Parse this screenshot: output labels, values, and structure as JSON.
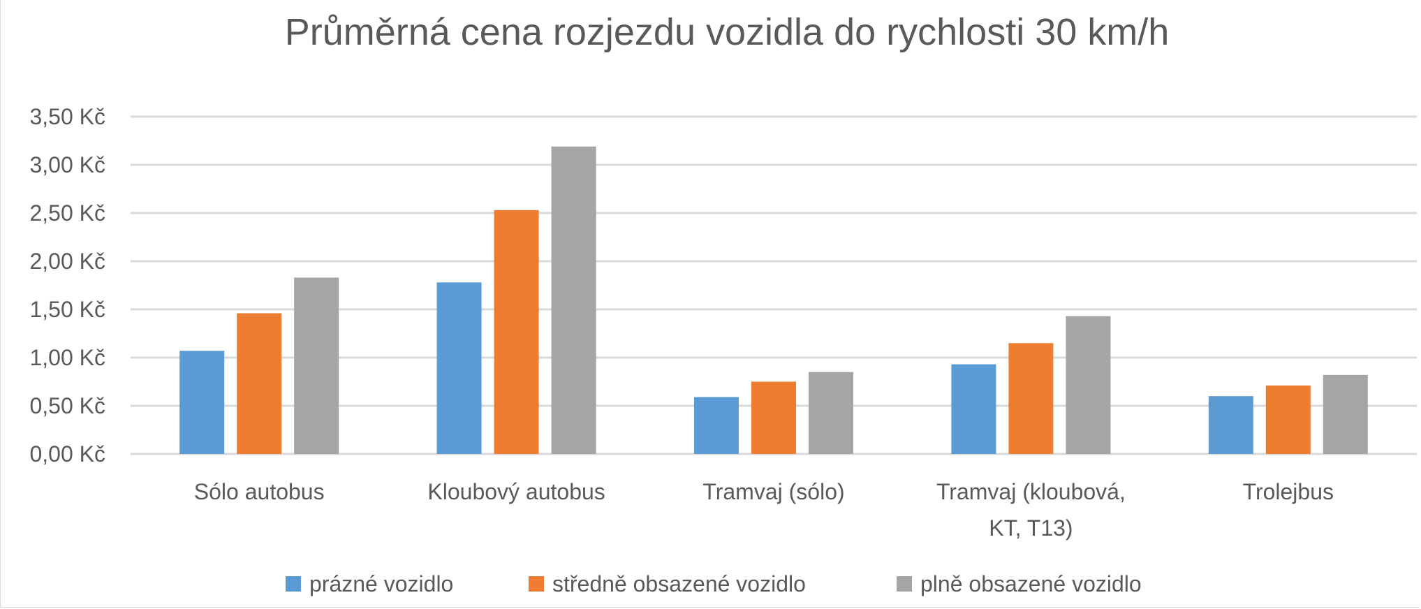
{
  "chart_data": {
    "type": "bar",
    "title": "Průměrná cena rozjezdu vozidla do rychlosti 30 km/h",
    "categories": [
      [
        "Sólo autobus"
      ],
      [
        "Kloubový autobus"
      ],
      [
        "Tramvaj (sólo)"
      ],
      [
        "Tramvaj (kloubová,",
        "KT, T13)"
      ],
      [
        "Trolejbus"
      ]
    ],
    "series": [
      {
        "name": "prázné vozidlo",
        "color": "#5b9bd5",
        "values": [
          1.07,
          1.78,
          0.59,
          0.93,
          0.6
        ]
      },
      {
        "name": "středně obsazené vozidlo",
        "color": "#ed7d31",
        "values": [
          1.46,
          2.53,
          0.75,
          1.15,
          0.71
        ]
      },
      {
        "name": "plně obsazené vozidlo",
        "color": "#a5a5a5",
        "values": [
          1.83,
          3.19,
          0.85,
          1.43,
          0.82
        ]
      }
    ],
    "y_ticks": [
      "0,00 Kč",
      "0,50 Kč",
      "1,00 Kč",
      "1,50 Kč",
      "2,00 Kč",
      "2,50 Kč",
      "3,00 Kč",
      "3,50 Kč"
    ],
    "ylim": [
      0,
      3.5
    ],
    "y_step": 0.5,
    "grid": true,
    "legend_position": "bottom",
    "xlabel": "",
    "ylabel": ""
  }
}
